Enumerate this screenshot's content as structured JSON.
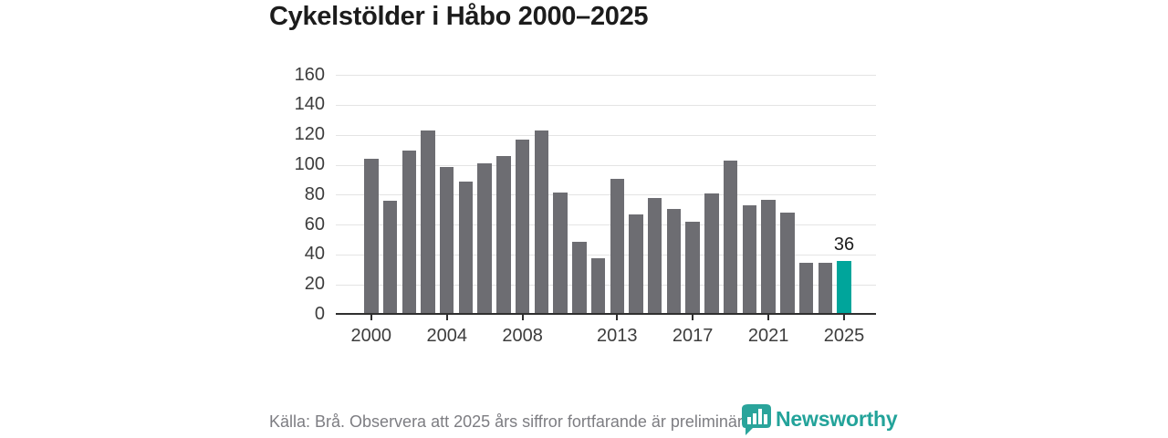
{
  "title": "Cykelstölder i Håbo 2000–2025",
  "footer": {
    "source_note": "Källa: Brå. Observera att 2025 års siffror fortfarande är preliminära."
  },
  "branding": {
    "logo_text": "Newsworthy",
    "logo_color": "#23a39a"
  },
  "chart_data": {
    "type": "bar",
    "title": "Cykelstölder i Håbo 2000–2025",
    "categories": [
      2000,
      2001,
      2002,
      2003,
      2004,
      2005,
      2006,
      2007,
      2008,
      2009,
      2010,
      2011,
      2012,
      2013,
      2014,
      2015,
      2016,
      2017,
      2018,
      2019,
      2020,
      2021,
      2022,
      2023,
      2024,
      2025
    ],
    "values": [
      104,
      76,
      110,
      123,
      99,
      89,
      101,
      106,
      117,
      123,
      82,
      49,
      38,
      91,
      67,
      78,
      71,
      62,
      81,
      103,
      73,
      77,
      68,
      35,
      35,
      36
    ],
    "xlabel": "",
    "ylabel": "",
    "ylim": [
      0,
      160
    ],
    "y_ticks": [
      0,
      20,
      40,
      60,
      80,
      100,
      120,
      140,
      160
    ],
    "x_tick_years": [
      2000,
      2004,
      2008,
      2013,
      2017,
      2021,
      2025
    ],
    "grid": true,
    "legend": false,
    "bar_color": "#6d6d72",
    "highlight_color": "#00a59b",
    "highlight_index": 25,
    "annotation": {
      "text": "36",
      "index": 25
    }
  }
}
